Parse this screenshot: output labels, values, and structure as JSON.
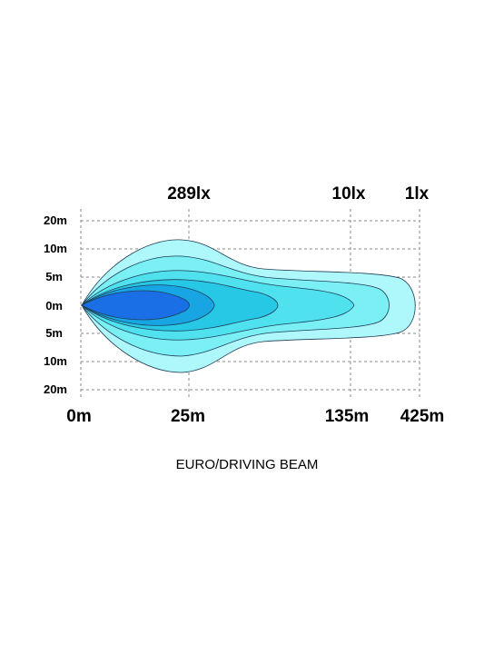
{
  "lux_labels": [
    "289lx",
    "10lx",
    "1lx"
  ],
  "y_axis_labels": [
    "20m",
    "10m",
    "5m",
    "0m",
    "5m",
    "10m",
    "20m"
  ],
  "x_axis_labels": [
    "0m",
    "25m",
    "135m",
    "425m"
  ],
  "caption": "EURO/DRIVING BEAM",
  "colors": {
    "zone_outer": "#aef7fb",
    "zone_2": "#7aeff4",
    "zone_3": "#4fe1ee",
    "zone_4": "#27c7e6",
    "zone_5": "#18a5e4",
    "zone_core": "#1a6fe6"
  }
}
